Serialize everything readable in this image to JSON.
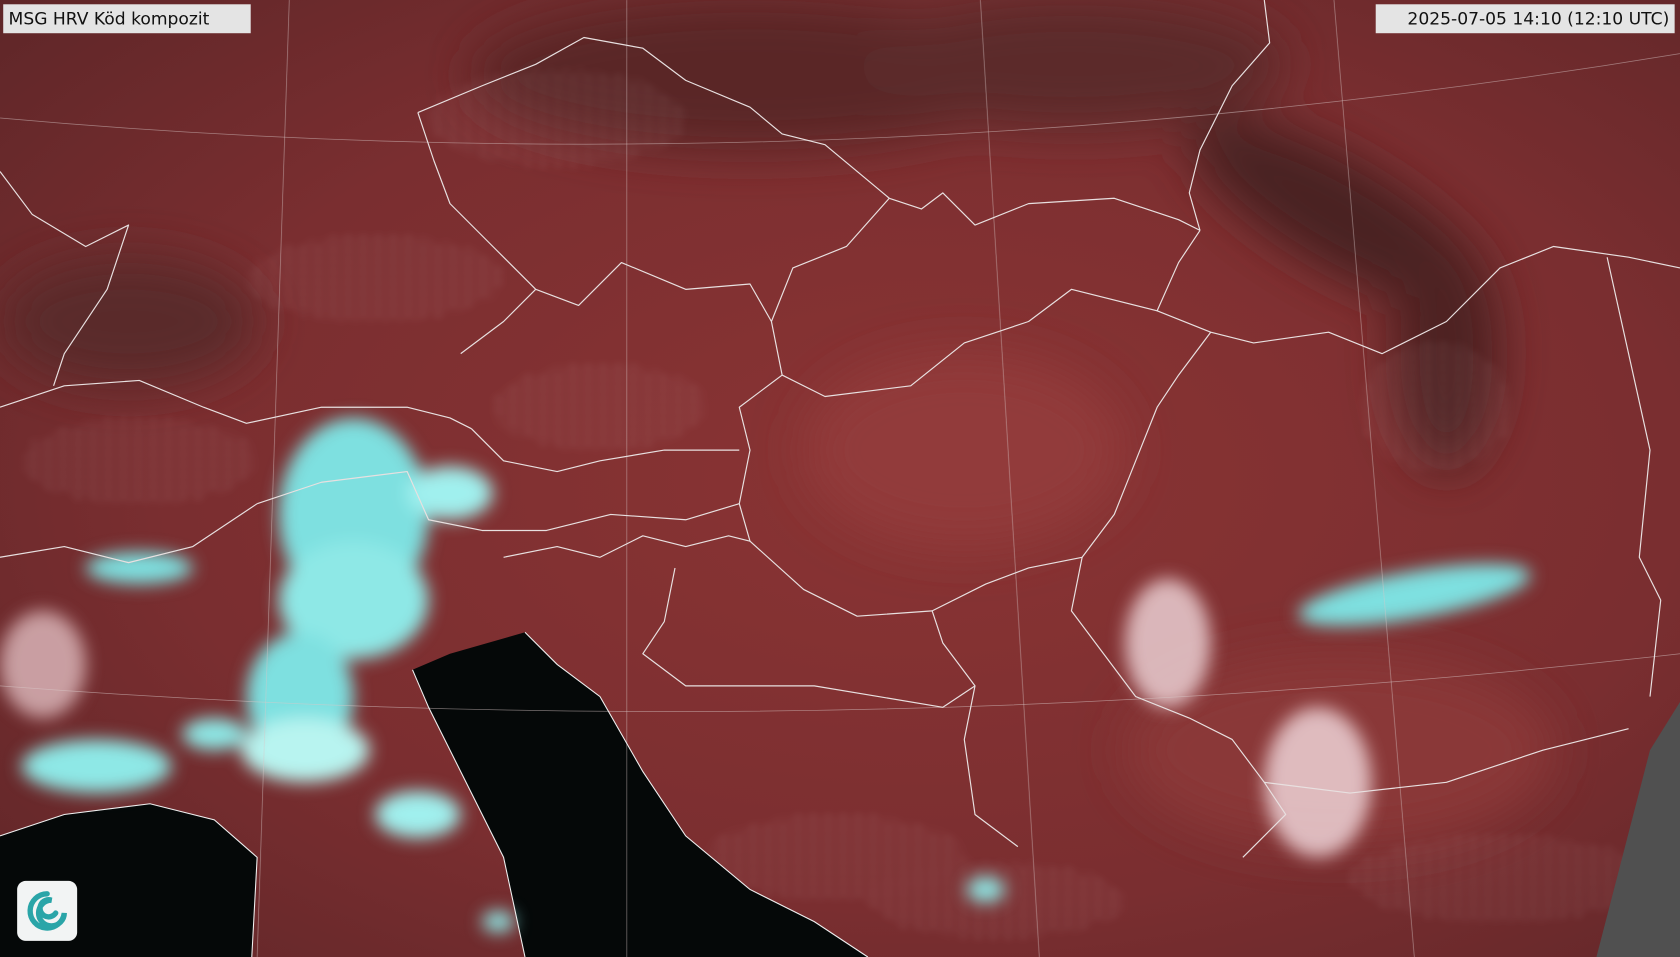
{
  "header": {
    "title": "MSG HRV Köd kompozit",
    "timestamp": "2025-07-05 14:10 (12:10 UTC)"
  }
}
